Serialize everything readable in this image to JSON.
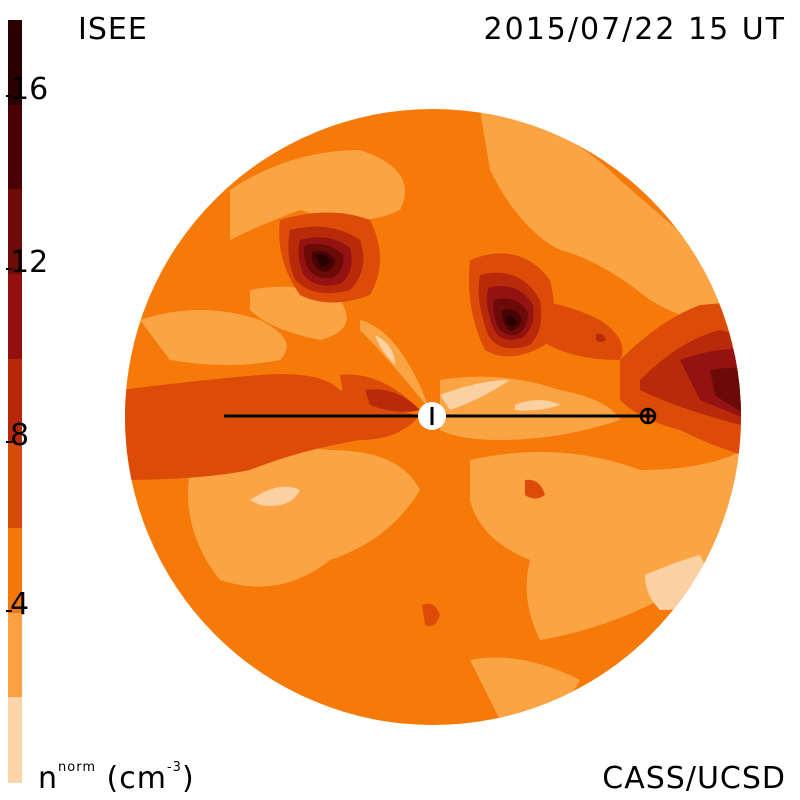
{
  "title_left": "ISEE",
  "title_right": "2015/07/22 15 UT",
  "credit": "CASS/UCSD",
  "unit": {
    "base": "n",
    "sup": "norm",
    "units": "(cm",
    "exp": "-3",
    "close": ")"
  },
  "colorbar": {
    "ticks": [
      "16",
      "12",
      "8",
      "4"
    ],
    "colors": [
      "#2a0000",
      "#4a0004",
      "#6e0a08",
      "#941010",
      "#b82808",
      "#d84a08",
      "#f57808",
      "#fba040",
      "#fdd3a8"
    ]
  },
  "palette": {
    "level1": "#fbd0a2",
    "level2": "#fba444",
    "level3": "#f57a0a",
    "level4": "#dc4c08",
    "level5": "#b82a0a",
    "level6": "#941212",
    "level7": "#6c0a08",
    "level8": "#480404",
    "level9": "#2a0000"
  }
}
